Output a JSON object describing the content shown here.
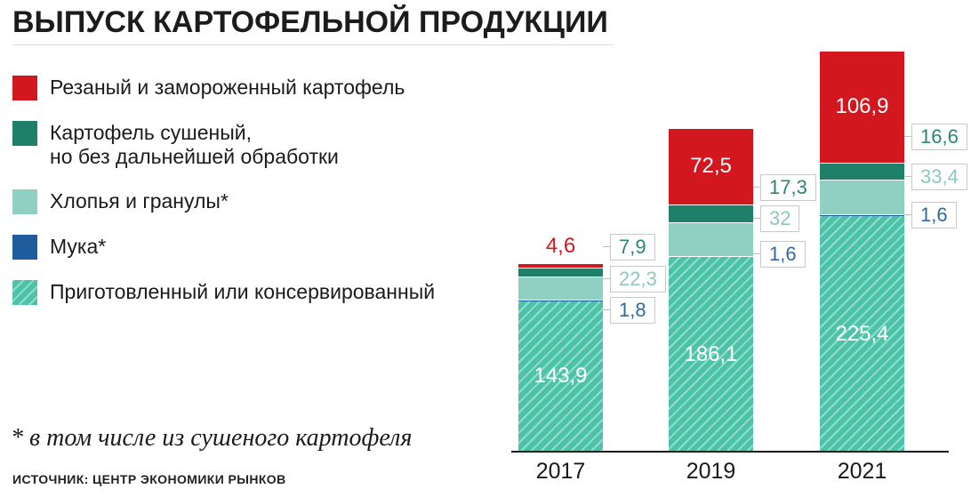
{
  "title": "ВЫПУСК КАРТОФЕЛЬНОЙ ПРОДУКЦИИ",
  "legend": {
    "items": [
      {
        "key": "frozen",
        "label": "Резаный и замороженный картофель"
      },
      {
        "key": "dried",
        "label": "Картофель сушеный,",
        "label2": "но без дальнейшей обработки"
      },
      {
        "key": "flakes",
        "label": "Хлопья и гранулы*"
      },
      {
        "key": "flour",
        "label": "Мука*"
      },
      {
        "key": "prepared",
        "label": "Приготовленный или консервированный"
      }
    ]
  },
  "footnote": "* в том числе из сушеного картофеля",
  "source": "ИСТОЧНИК: ЦЕНТР ЭКОНОМИКИ РЫНКОВ",
  "colors": {
    "frozen": "#d2181e",
    "dried": "#1f8069",
    "flakes": "#8fd0c2",
    "flour": "#1f5c9e",
    "prepared_base": "#4ec2a8",
    "prepared_stripe": "#8ee0cd",
    "dried_text": "#2a8671",
    "flakes_text": "#8cc8bb",
    "flour_text": "#2d6ba5",
    "frozen_text": "#d2181e",
    "axis": "#1a1a1a",
    "callout_border": "#c9c9c9"
  },
  "chart_data": {
    "type": "bar",
    "stacked": true,
    "title": "ВЫПУСК КАРТОФЕЛЬНОЙ ПРОДУКЦИИ",
    "categories": [
      "2017",
      "2019",
      "2021"
    ],
    "series": [
      {
        "key": "prepared",
        "name": "Приготовленный или консервированный",
        "values": [
          143.9,
          186.1,
          225.4
        ],
        "labels": [
          "143,9",
          "186,1",
          "225,4"
        ]
      },
      {
        "key": "flour",
        "name": "Мука",
        "values": [
          1.8,
          1.6,
          1.6
        ],
        "labels": [
          "1,8",
          "1,6",
          "1,6"
        ]
      },
      {
        "key": "flakes",
        "name": "Хлопья и гранулы",
        "values": [
          22.3,
          32,
          33.4
        ],
        "labels": [
          "22,3",
          "32",
          "33,4"
        ]
      },
      {
        "key": "dried",
        "name": "Картофель сушеный, но без дальнейшей обработки",
        "values": [
          7.9,
          17.3,
          16.6
        ],
        "labels": [
          "7,9",
          "17,3",
          "16,6"
        ]
      },
      {
        "key": "frozen",
        "name": "Резаный и замороженный картофель",
        "values": [
          4.6,
          72.5,
          106.9
        ],
        "labels": [
          "4,6",
          "72,5",
          "106,9"
        ]
      }
    ],
    "totals": [
      180.5,
      309.5,
      383.9
    ],
    "ylim": [
      0,
      390
    ],
    "grid": false,
    "legend_position": "left",
    "footnote": "* в том числе из сушеного картофеля",
    "source": "ИСТОЧНИК: ЦЕНТР ЭКОНОМИКИ РЫНКОВ"
  }
}
